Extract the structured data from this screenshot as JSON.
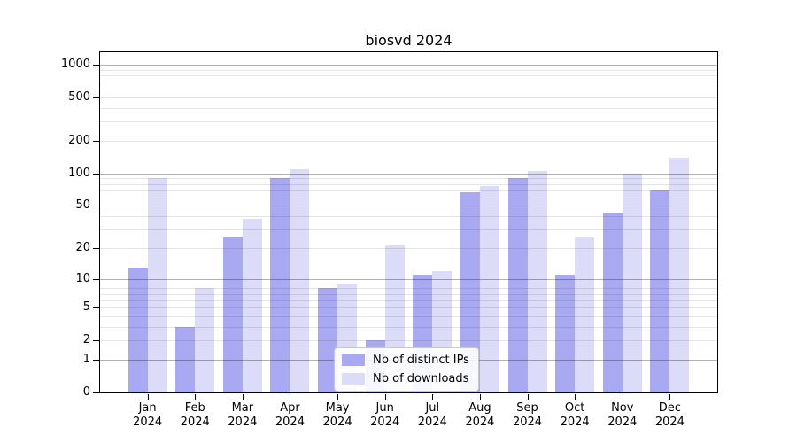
{
  "chart_data": {
    "type": "bar",
    "title": "biosvd 2024",
    "categories": [
      "Jan 2024",
      "Feb 2024",
      "Mar 2024",
      "Apr 2024",
      "May 2024",
      "Jun 2024",
      "Jul 2024",
      "Aug 2024",
      "Sep 2024",
      "Oct 2024",
      "Nov 2024",
      "Dec 2024"
    ],
    "series": [
      {
        "name": "Nb of distinct IPs",
        "color": "#a9a9f2",
        "values": [
          13,
          3,
          26,
          91,
          8,
          2,
          11,
          67,
          91,
          11,
          43,
          70
        ]
      },
      {
        "name": "Nb of downloads",
        "color": "#dcdcf9",
        "values": [
          90,
          8,
          38,
          110,
          9,
          21,
          12,
          77,
          105,
          26,
          100,
          140
        ]
      }
    ],
    "xlabel": "",
    "ylabel": "",
    "yscale": "log1p",
    "ylim": [
      0,
      1000
    ],
    "yticks": [
      0,
      1,
      2,
      5,
      10,
      20,
      50,
      100,
      200,
      500,
      1000
    ],
    "grid": "major horizontal gray, minor faint, drawn over bars",
    "legend_position": "lower center inside plot"
  },
  "colors": {
    "axis": "#000000",
    "background": "#ffffff",
    "grid_major": "#b3b3b3",
    "grid_minor": "#e6e6e6",
    "legend_border": "#c9c9c9"
  }
}
